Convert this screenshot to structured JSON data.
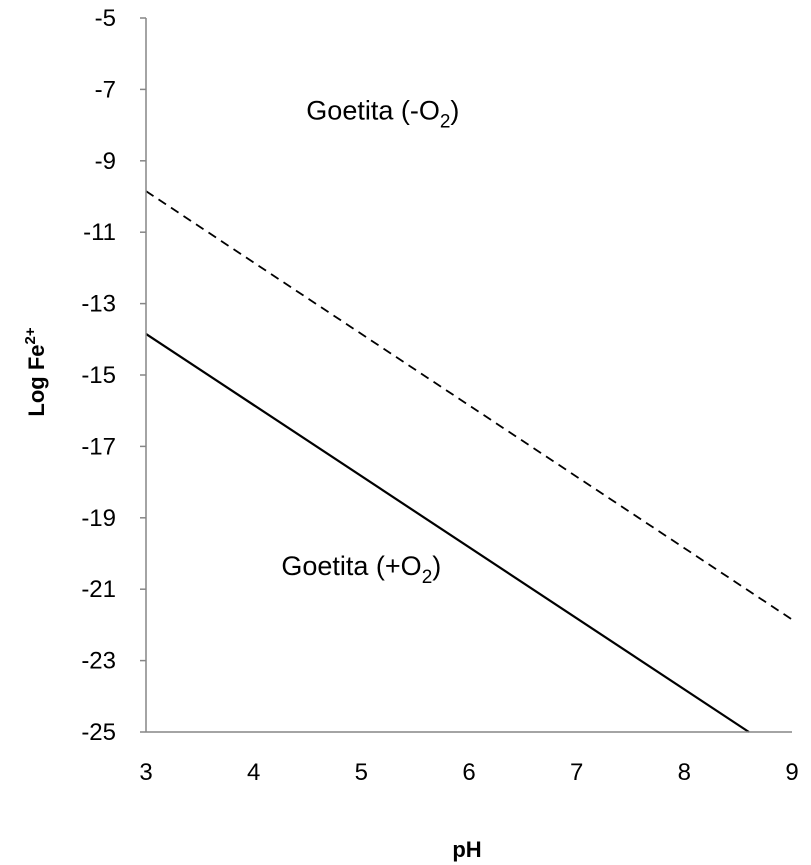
{
  "chart_data": {
    "type": "line",
    "title": "",
    "xlabel": "pH",
    "ylabel_base": "Log Fe",
    "ylabel_sup": "2+",
    "xlim": [
      3,
      9
    ],
    "ylim": [
      -25,
      -5
    ],
    "xticks": [
      3,
      4,
      5,
      6,
      7,
      8,
      9
    ],
    "yticks": [
      -5,
      -7,
      -9,
      -11,
      -13,
      -15,
      -17,
      -19,
      -21,
      -23,
      -25
    ],
    "grid": false,
    "legend": "none",
    "series": [
      {
        "style": "dashed",
        "color": "#000000",
        "x": [
          3,
          9
        ],
        "y": [
          -9.85,
          -21.85
        ]
      },
      {
        "style": "solid",
        "color": "#000000",
        "x": [
          3,
          8.6
        ],
        "y": [
          -13.85,
          -25
        ]
      }
    ],
    "annotations": [
      {
        "id": "upper",
        "prefix": "Goetita (-O",
        "sub": "2",
        "suffix": ")",
        "x": 5.2,
        "y": -7.85
      },
      {
        "id": "lower",
        "prefix": "Goetita (+O",
        "sub": "2",
        "suffix": ")",
        "x": 5.0,
        "y": -20.6
      }
    ]
  }
}
